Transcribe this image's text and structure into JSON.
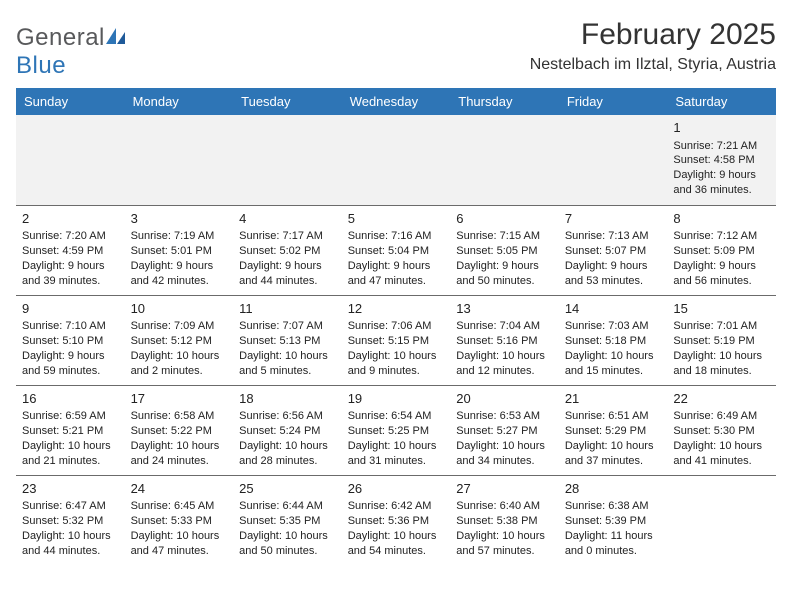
{
  "logo": {
    "word1": "General",
    "word2": "Blue"
  },
  "title": "February 2025",
  "location": "Nestelbach im Ilztal, Styria, Austria",
  "brand_color": "#2e75b6",
  "header_bg": "#2e75b6",
  "header_text_color": "#ffffff",
  "week1_bg": "#f2f2f2",
  "divider_color": "#6b6b6b",
  "text_color": "#222222",
  "days": [
    "Sunday",
    "Monday",
    "Tuesday",
    "Wednesday",
    "Thursday",
    "Friday",
    "Saturday"
  ],
  "weeks": [
    [
      null,
      null,
      null,
      null,
      null,
      null,
      {
        "n": "1",
        "sr": "Sunrise: 7:21 AM",
        "ss": "Sunset: 4:58 PM",
        "dl": "Daylight: 9 hours and 36 minutes."
      }
    ],
    [
      {
        "n": "2",
        "sr": "Sunrise: 7:20 AM",
        "ss": "Sunset: 4:59 PM",
        "dl": "Daylight: 9 hours and 39 minutes."
      },
      {
        "n": "3",
        "sr": "Sunrise: 7:19 AM",
        "ss": "Sunset: 5:01 PM",
        "dl": "Daylight: 9 hours and 42 minutes."
      },
      {
        "n": "4",
        "sr": "Sunrise: 7:17 AM",
        "ss": "Sunset: 5:02 PM",
        "dl": "Daylight: 9 hours and 44 minutes."
      },
      {
        "n": "5",
        "sr": "Sunrise: 7:16 AM",
        "ss": "Sunset: 5:04 PM",
        "dl": "Daylight: 9 hours and 47 minutes."
      },
      {
        "n": "6",
        "sr": "Sunrise: 7:15 AM",
        "ss": "Sunset: 5:05 PM",
        "dl": "Daylight: 9 hours and 50 minutes."
      },
      {
        "n": "7",
        "sr": "Sunrise: 7:13 AM",
        "ss": "Sunset: 5:07 PM",
        "dl": "Daylight: 9 hours and 53 minutes."
      },
      {
        "n": "8",
        "sr": "Sunrise: 7:12 AM",
        "ss": "Sunset: 5:09 PM",
        "dl": "Daylight: 9 hours and 56 minutes."
      }
    ],
    [
      {
        "n": "9",
        "sr": "Sunrise: 7:10 AM",
        "ss": "Sunset: 5:10 PM",
        "dl": "Daylight: 9 hours and 59 minutes."
      },
      {
        "n": "10",
        "sr": "Sunrise: 7:09 AM",
        "ss": "Sunset: 5:12 PM",
        "dl": "Daylight: 10 hours and 2 minutes."
      },
      {
        "n": "11",
        "sr": "Sunrise: 7:07 AM",
        "ss": "Sunset: 5:13 PM",
        "dl": "Daylight: 10 hours and 5 minutes."
      },
      {
        "n": "12",
        "sr": "Sunrise: 7:06 AM",
        "ss": "Sunset: 5:15 PM",
        "dl": "Daylight: 10 hours and 9 minutes."
      },
      {
        "n": "13",
        "sr": "Sunrise: 7:04 AM",
        "ss": "Sunset: 5:16 PM",
        "dl": "Daylight: 10 hours and 12 minutes."
      },
      {
        "n": "14",
        "sr": "Sunrise: 7:03 AM",
        "ss": "Sunset: 5:18 PM",
        "dl": "Daylight: 10 hours and 15 minutes."
      },
      {
        "n": "15",
        "sr": "Sunrise: 7:01 AM",
        "ss": "Sunset: 5:19 PM",
        "dl": "Daylight: 10 hours and 18 minutes."
      }
    ],
    [
      {
        "n": "16",
        "sr": "Sunrise: 6:59 AM",
        "ss": "Sunset: 5:21 PM",
        "dl": "Daylight: 10 hours and 21 minutes."
      },
      {
        "n": "17",
        "sr": "Sunrise: 6:58 AM",
        "ss": "Sunset: 5:22 PM",
        "dl": "Daylight: 10 hours and 24 minutes."
      },
      {
        "n": "18",
        "sr": "Sunrise: 6:56 AM",
        "ss": "Sunset: 5:24 PM",
        "dl": "Daylight: 10 hours and 28 minutes."
      },
      {
        "n": "19",
        "sr": "Sunrise: 6:54 AM",
        "ss": "Sunset: 5:25 PM",
        "dl": "Daylight: 10 hours and 31 minutes."
      },
      {
        "n": "20",
        "sr": "Sunrise: 6:53 AM",
        "ss": "Sunset: 5:27 PM",
        "dl": "Daylight: 10 hours and 34 minutes."
      },
      {
        "n": "21",
        "sr": "Sunrise: 6:51 AM",
        "ss": "Sunset: 5:29 PM",
        "dl": "Daylight: 10 hours and 37 minutes."
      },
      {
        "n": "22",
        "sr": "Sunrise: 6:49 AM",
        "ss": "Sunset: 5:30 PM",
        "dl": "Daylight: 10 hours and 41 minutes."
      }
    ],
    [
      {
        "n": "23",
        "sr": "Sunrise: 6:47 AM",
        "ss": "Sunset: 5:32 PM",
        "dl": "Daylight: 10 hours and 44 minutes."
      },
      {
        "n": "24",
        "sr": "Sunrise: 6:45 AM",
        "ss": "Sunset: 5:33 PM",
        "dl": "Daylight: 10 hours and 47 minutes."
      },
      {
        "n": "25",
        "sr": "Sunrise: 6:44 AM",
        "ss": "Sunset: 5:35 PM",
        "dl": "Daylight: 10 hours and 50 minutes."
      },
      {
        "n": "26",
        "sr": "Sunrise: 6:42 AM",
        "ss": "Sunset: 5:36 PM",
        "dl": "Daylight: 10 hours and 54 minutes."
      },
      {
        "n": "27",
        "sr": "Sunrise: 6:40 AM",
        "ss": "Sunset: 5:38 PM",
        "dl": "Daylight: 10 hours and 57 minutes."
      },
      {
        "n": "28",
        "sr": "Sunrise: 6:38 AM",
        "ss": "Sunset: 5:39 PM",
        "dl": "Daylight: 11 hours and 0 minutes."
      },
      null
    ]
  ]
}
